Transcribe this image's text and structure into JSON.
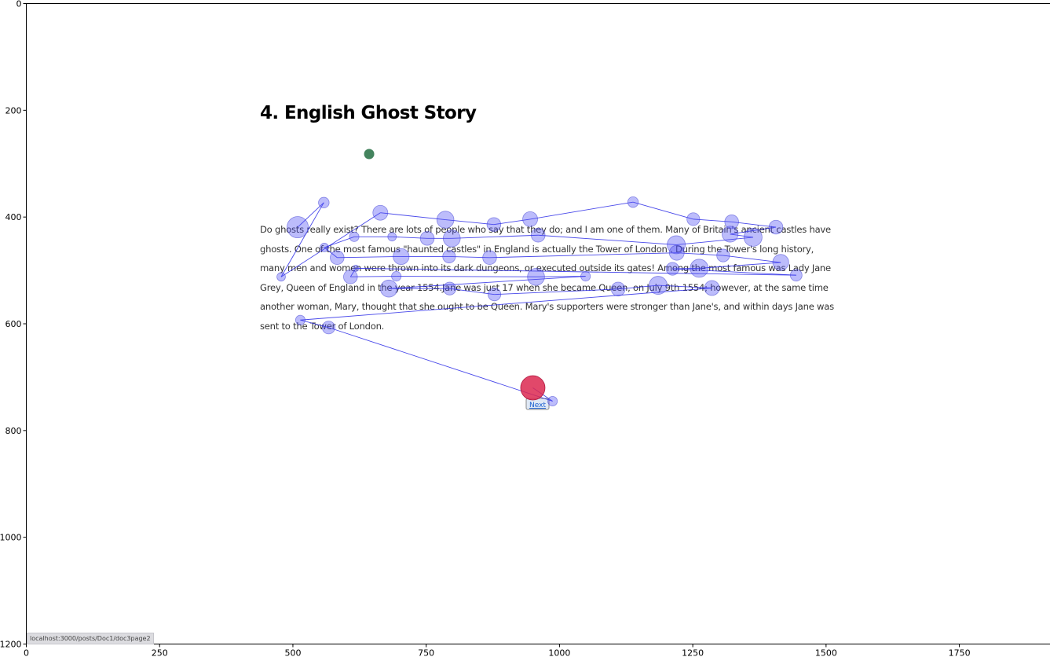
{
  "chart_data": {
    "type": "scatter",
    "title": "",
    "xlabel": "",
    "ylabel": "",
    "xlim": [
      0,
      1920
    ],
    "ylim": [
      1200,
      0
    ],
    "x_ticks": [
      0,
      250,
      500,
      750,
      1000,
      1250,
      1500,
      1750
    ],
    "y_ticks": [
      0,
      200,
      400,
      600,
      800,
      1000,
      1200
    ],
    "grid": false,
    "legend": "none",
    "background_page": {
      "title": "4. English Ghost Story",
      "body_lines": [
        "Do ghosts really exist? There are lots of people who say that they do; and I am one of them. Many of Britain's ancient castles have",
        "ghosts. One of the most famous \"haunted castles\" in England is actually the Tower of London . During the Tower's long history,",
        "many men and women were thrown into its dark dungeons, or executed outside its gates! Among the most famous was Lady Jane",
        "Grey, Queen of England in the year 1554.Jane was just 17 when she became Queen, on July 9th 1554; however, at the same time",
        "another woman, Mary, thought that she ought to be Queen. Mary's supporters were stronger than Jane's, and within days Jane was",
        "sent to the Tower of London."
      ],
      "link_label": "Next",
      "status_url": "localhost:3000/posts/Doc1/doc3page2"
    },
    "start_point": {
      "x": 643,
      "y": 282,
      "color": "#3a7d55"
    },
    "end_point": {
      "x": 950,
      "y": 720,
      "color": "#dc2850"
    },
    "series": [
      {
        "color": "#5050f5",
        "points": [
          {
            "x": 509,
            "y": 419,
            "r": 20
          },
          {
            "x": 558,
            "y": 373,
            "r": 10
          },
          {
            "x": 478,
            "y": 512,
            "r": 8
          },
          {
            "x": 664,
            "y": 392,
            "r": 14
          },
          {
            "x": 786,
            "y": 405,
            "r": 16
          },
          {
            "x": 877,
            "y": 414,
            "r": 13
          },
          {
            "x": 945,
            "y": 404,
            "r": 14
          },
          {
            "x": 1138,
            "y": 372,
            "r": 10
          },
          {
            "x": 1251,
            "y": 404,
            "r": 12
          },
          {
            "x": 1323,
            "y": 409,
            "r": 13
          },
          {
            "x": 1406,
            "y": 419,
            "r": 13
          },
          {
            "x": 1320,
            "y": 432,
            "r": 15
          },
          {
            "x": 1363,
            "y": 438,
            "r": 17
          },
          {
            "x": 1219,
            "y": 452,
            "r": 17
          },
          {
            "x": 960,
            "y": 434,
            "r": 13
          },
          {
            "x": 798,
            "y": 440,
            "r": 16
          },
          {
            "x": 752,
            "y": 440,
            "r": 13
          },
          {
            "x": 686,
            "y": 437,
            "r": 8
          },
          {
            "x": 615,
            "y": 437,
            "r": 9
          },
          {
            "x": 559,
            "y": 457,
            "r": 8
          },
          {
            "x": 583,
            "y": 476,
            "r": 13
          },
          {
            "x": 703,
            "y": 474,
            "r": 15
          },
          {
            "x": 793,
            "y": 474,
            "r": 12
          },
          {
            "x": 869,
            "y": 476,
            "r": 13
          },
          {
            "x": 1220,
            "y": 467,
            "r": 14
          },
          {
            "x": 1307,
            "y": 472,
            "r": 12
          },
          {
            "x": 1415,
            "y": 485,
            "r": 15
          },
          {
            "x": 1262,
            "y": 496,
            "r": 17
          },
          {
            "x": 1212,
            "y": 497,
            "r": 12
          },
          {
            "x": 1444,
            "y": 509,
            "r": 11
          },
          {
            "x": 618,
            "y": 496,
            "r": 6
          },
          {
            "x": 608,
            "y": 512,
            "r": 13
          },
          {
            "x": 694,
            "y": 511,
            "r": 9
          },
          {
            "x": 956,
            "y": 512,
            "r": 16
          },
          {
            "x": 1049,
            "y": 511,
            "r": 9
          },
          {
            "x": 680,
            "y": 534,
            "r": 16
          },
          {
            "x": 794,
            "y": 534,
            "r": 12
          },
          {
            "x": 878,
            "y": 545,
            "r": 12
          },
          {
            "x": 1110,
            "y": 535,
            "r": 13
          },
          {
            "x": 1185,
            "y": 528,
            "r": 17
          },
          {
            "x": 1286,
            "y": 533,
            "r": 14
          },
          {
            "x": 514,
            "y": 593,
            "r": 9
          },
          {
            "x": 567,
            "y": 607,
            "r": 12
          },
          {
            "x": 987,
            "y": 745,
            "r": 9
          }
        ]
      }
    ]
  },
  "ui": {
    "x_tick_labels": [
      "0",
      "250",
      "500",
      "750",
      "1000",
      "1250",
      "1500",
      "1750"
    ],
    "y_tick_labels": [
      "0",
      "200",
      "400",
      "600",
      "800",
      "1000",
      "1200"
    ]
  }
}
